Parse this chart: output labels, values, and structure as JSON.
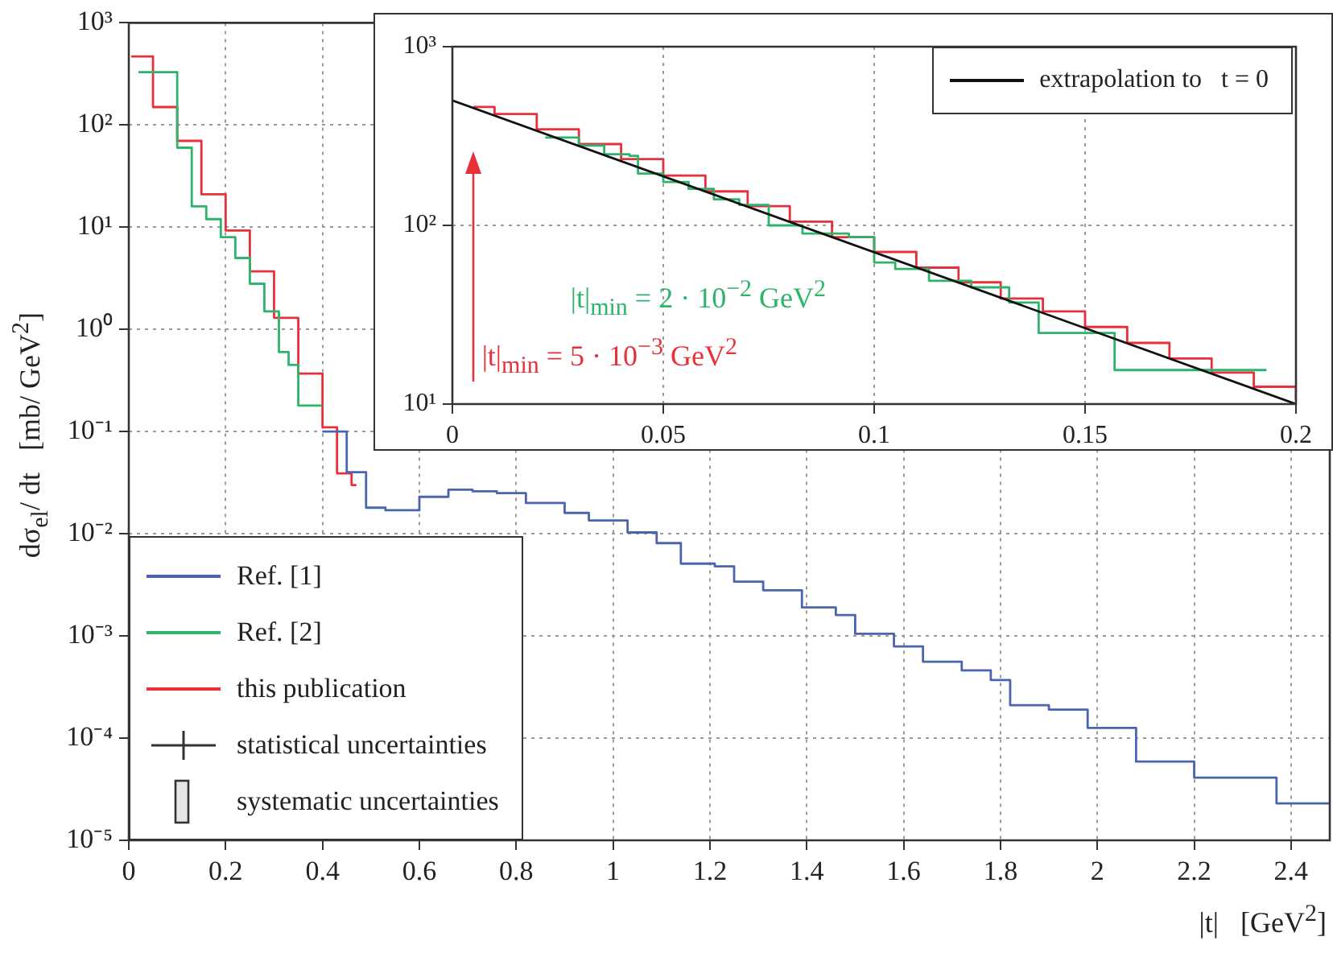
{
  "chart_data": [
    {
      "type": "step",
      "xlabel": "|t|   [GeV$^{2}$]",
      "ylabel": "dσ$_{el}$/ dt   [mb/ GeV$^{2}$]",
      "log": "y",
      "grid": true,
      "legend": "bottom left",
      "xlim": [
        0,
        2.48
      ],
      "xticks": [
        0,
        0.2,
        0.4,
        0.6,
        0.8,
        1,
        1.2,
        1.4,
        1.6,
        1.8,
        2,
        2.2,
        2.4
      ],
      "ylim": [
        1e-05,
        1000
      ],
      "yticks": [
        {
          "value": 1e-05,
          "label": "10⁻⁵"
        },
        {
          "value": 0.0001,
          "label": "10⁻⁴"
        },
        {
          "value": 0.001,
          "label": "10⁻³"
        },
        {
          "value": 0.01,
          "label": "10⁻²"
        },
        {
          "value": 0.1,
          "label": "10⁻¹"
        },
        {
          "value": 1,
          "label": "10⁰"
        },
        {
          "value": 10,
          "label": "10¹"
        },
        {
          "value": 100,
          "label": "10²"
        },
        {
          "value": 1000,
          "label": "10³"
        }
      ],
      "series": [
        {
          "name": "Ref. [1]",
          "color": "#4a64b0",
          "x": [
            0.4,
            0.45,
            0.49,
            0.53,
            0.6,
            0.66,
            0.71,
            0.76,
            0.82,
            0.9,
            0.95,
            1.03,
            1.09,
            1.14,
            1.21,
            1.25,
            1.31,
            1.39,
            1.46,
            1.5,
            1.58,
            1.64,
            1.72,
            1.78,
            1.82,
            1.9,
            1.98,
            2.08,
            2.2,
            2.37,
            2.48
          ],
          "values": [
            0.1,
            0.04,
            0.018,
            0.017,
            0.023,
            0.027,
            0.026,
            0.025,
            0.02,
            0.016,
            0.0135,
            0.0103,
            0.0081,
            0.0051,
            0.0048,
            0.0034,
            0.0028,
            0.0019,
            0.0016,
            0.00105,
            0.00079,
            0.00056,
            0.00046,
            0.00037,
            0.00021,
            0.00019,
            0.000126,
            5.9e-05,
            4.1e-05,
            2.3e-05,
            2.3e-05
          ]
        },
        {
          "name": "Ref. [2]",
          "color": "#2db36a",
          "x": [
            0.02,
            0.1,
            0.13,
            0.16,
            0.19,
            0.22,
            0.25,
            0.28,
            0.31,
            0.33,
            0.35,
            0.38,
            0.4
          ],
          "values": [
            330,
            60,
            16,
            12,
            8,
            5,
            2.8,
            1.5,
            0.6,
            0.45,
            0.18,
            0.18,
            0.18
          ]
        },
        {
          "name": "this publication",
          "color": "#e8303a",
          "x": [
            0.005,
            0.05,
            0.1,
            0.15,
            0.2,
            0.25,
            0.3,
            0.35,
            0.4,
            0.43,
            0.46,
            0.47
          ],
          "values": [
            470,
            150,
            70,
            21,
            9.3,
            3.7,
            1.3,
            0.37,
            0.11,
            0.039,
            0.03,
            0.03
          ]
        }
      ],
      "annotations": [
        "statistical uncertainties",
        "systematic uncertainties"
      ]
    },
    {
      "type": "step",
      "log": "y",
      "grid": true,
      "legend": "top right",
      "xlim": [
        0,
        0.2
      ],
      "xticks": [
        0,
        0.05,
        0.1,
        0.15,
        0.2
      ],
      "ylim": [
        10,
        1000
      ],
      "yticks": [
        {
          "value": 10,
          "label": "10¹"
        },
        {
          "value": 100,
          "label": "10²"
        },
        {
          "value": 1000,
          "label": "10³"
        }
      ],
      "series": [
        {
          "name": "extrapolation to   t = 0",
          "type": "line",
          "color": "#111111",
          "x": [
            0,
            0.2
          ],
          "values": [
            500,
            10
          ]
        },
        {
          "color": "#2db36a",
          "x": [
            0.022,
            0.03,
            0.036,
            0.042,
            0.044,
            0.05,
            0.056,
            0.062,
            0.068,
            0.075,
            0.083,
            0.094,
            0.1,
            0.105,
            0.113,
            0.123,
            0.132,
            0.139,
            0.157,
            0.193
          ],
          "values": [
            310,
            280,
            250,
            245,
            195,
            175,
            160,
            140,
            130,
            100,
            90,
            86,
            62,
            57,
            49,
            45,
            37,
            25,
            15.5,
            15.5
          ]
        },
        {
          "color": "#e8303a",
          "x": [
            0.005,
            0.01,
            0.02,
            0.03,
            0.04,
            0.05,
            0.06,
            0.07,
            0.08,
            0.09,
            0.1,
            0.11,
            0.12,
            0.13,
            0.14,
            0.15,
            0.16,
            0.17,
            0.18,
            0.19,
            0.2
          ],
          "values": [
            460,
            420,
            345,
            285,
            235,
            190,
            155,
            128,
            105,
            86,
            71,
            58,
            48,
            39,
            33,
            27,
            22,
            18,
            15,
            12.5,
            10.5
          ]
        }
      ],
      "annotations": [
        "|t|$_{min}$ = 2 · 10$^{−2}$ GeV$^{2}$",
        "|t|$_{min}$ = 5 · 10$^{−3}$ GeV$^{2}$"
      ]
    }
  ]
}
